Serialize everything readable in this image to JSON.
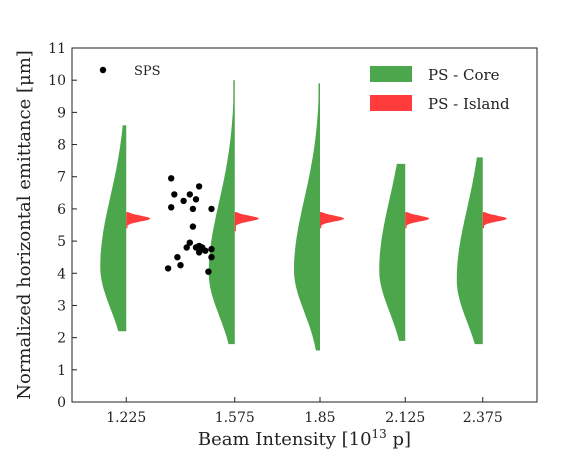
{
  "chart_data": {
    "type": "violin",
    "xlabel_main": "Beam Intensity [10",
    "xlabel_exp": "13",
    "xlabel_unit": " p]",
    "ylabel": "Normalized horizontal emittance [μm]",
    "ylim": [
      0,
      11
    ],
    "yticks": [
      0,
      1,
      2,
      3,
      4,
      5,
      6,
      7,
      8,
      9,
      10,
      11
    ],
    "categories": [
      "1.225",
      "1.575",
      "1.85",
      "2.125",
      "2.375"
    ],
    "legend": {
      "placement": "top-right",
      "entries": [
        {
          "label": "PS - Core",
          "color": "#4ca64c"
        },
        {
          "label": "PS - Island",
          "color": "#ff3b3b"
        }
      ]
    },
    "series": [
      {
        "name": "PS - Core",
        "side": "left",
        "color": "#4ca64c",
        "violins": [
          {
            "category": "1.225",
            "ymin": 2.2,
            "ymax": 8.6,
            "peak": 4.2
          },
          {
            "category": "1.575",
            "ymin": 1.8,
            "ymax": 10.0,
            "peak": 4.0
          },
          {
            "category": "1.85",
            "ymin": 1.6,
            "ymax": 9.9,
            "peak": 4.1
          },
          {
            "category": "2.125",
            "ymin": 1.9,
            "ymax": 7.4,
            "peak": 4.1
          },
          {
            "category": "2.375",
            "ymin": 1.8,
            "ymax": 7.6,
            "peak": 3.8
          }
        ]
      },
      {
        "name": "PS - Island",
        "side": "right",
        "color": "#ff3b3b",
        "violins": [
          {
            "category": "1.225",
            "ymin": 5.4,
            "ymax": 5.9,
            "peak": 5.7
          },
          {
            "category": "1.575",
            "ymin": 5.3,
            "ymax": 5.9,
            "peak": 5.7
          },
          {
            "category": "1.85",
            "ymin": 5.4,
            "ymax": 5.9,
            "peak": 5.7
          },
          {
            "category": "2.125",
            "ymin": 5.4,
            "ymax": 5.9,
            "peak": 5.7
          },
          {
            "category": "2.375",
            "ymin": 5.4,
            "ymax": 5.9,
            "peak": 5.7
          }
        ]
      }
    ],
    "sps": {
      "label": "SPS",
      "color": "#000000",
      "points": [
        [
          1.37,
          6.95
        ],
        [
          1.38,
          6.45
        ],
        [
          1.41,
          6.25
        ],
        [
          1.43,
          6.45
        ],
        [
          1.45,
          6.3
        ],
        [
          1.46,
          6.7
        ],
        [
          1.44,
          6.0
        ],
        [
          1.37,
          6.05
        ],
        [
          1.5,
          6.0
        ],
        [
          1.44,
          5.45
        ],
        [
          1.43,
          4.95
        ],
        [
          1.45,
          4.8
        ],
        [
          1.46,
          4.85
        ],
        [
          1.47,
          4.75
        ],
        [
          1.48,
          4.7
        ],
        [
          1.5,
          4.75
        ],
        [
          1.42,
          4.8
        ],
        [
          1.39,
          4.5
        ],
        [
          1.46,
          4.65
        ],
        [
          1.5,
          4.5
        ],
        [
          1.4,
          4.25
        ],
        [
          1.36,
          4.15
        ],
        [
          1.49,
          4.05
        ],
        [
          1.47,
          4.8
        ]
      ]
    }
  }
}
